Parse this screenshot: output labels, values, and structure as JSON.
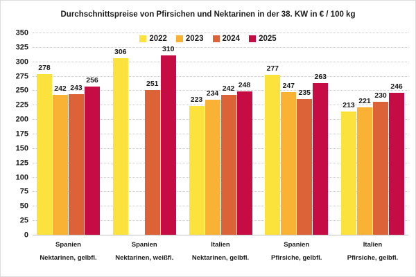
{
  "chart_data": {
    "type": "bar",
    "title": "Durchschnittspreise von Pfirsichen und Nektarinen in der 38. KW in € / 100 kg",
    "unit": "€ / 100 kg",
    "grid": true,
    "legend_position": "top-center",
    "ylim": [
      0,
      350
    ],
    "ytick_step": 25,
    "yticks": [
      350,
      325,
      300,
      275,
      250,
      225,
      200,
      175,
      150,
      125,
      100,
      75,
      50,
      25,
      0
    ],
    "categories": [
      {
        "country": "Spanien",
        "product": "Nektarinen, gelbfl."
      },
      {
        "country": "Spanien",
        "product": "Nektarinen, weißfl."
      },
      {
        "country": "Italien",
        "product": "Nektarinen, gelbfl."
      },
      {
        "country": "Spanien",
        "product": "Pfirsiche, gelbfl."
      },
      {
        "country": "Italien",
        "product": "Pfirsiche, gelbfl."
      }
    ],
    "series": [
      {
        "name": "2022",
        "color": "#FCE23C",
        "values": [
          278,
          306,
          223,
          277,
          213
        ]
      },
      {
        "name": "2023",
        "color": "#F9B233",
        "values": [
          242,
          null,
          234,
          247,
          221
        ]
      },
      {
        "name": "2024",
        "color": "#DC6237",
        "values": [
          243,
          251,
          242,
          235,
          230
        ]
      },
      {
        "name": "2025",
        "color": "#C60C45",
        "values": [
          256,
          310,
          248,
          263,
          246
        ]
      }
    ]
  }
}
